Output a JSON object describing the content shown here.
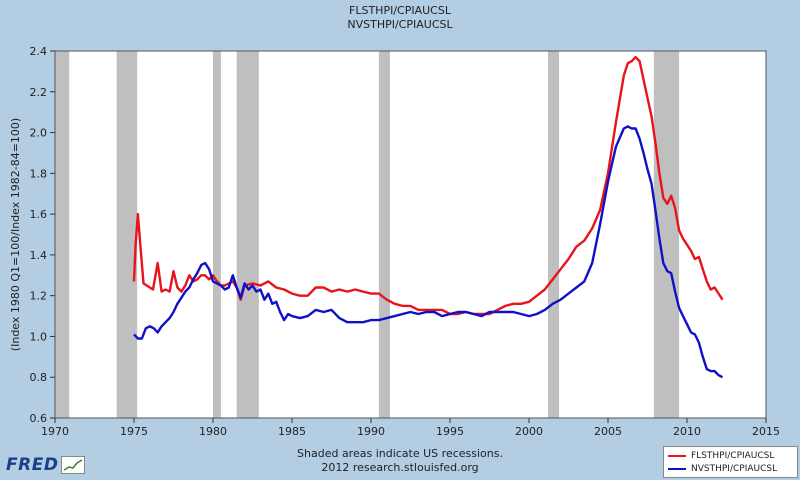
{
  "header": {
    "line1": "FLSTHPI/CPIAUCSL",
    "line2": "NVSTHPI/CPIAUCSL"
  },
  "footer": {
    "line1": "Shaded areas indicate US recessions.",
    "line2": "2012 research.stlouisfed.org"
  },
  "logo": {
    "text": "FRED"
  },
  "colors": {
    "fl": "#e8141c",
    "nv": "#1010c8",
    "recession": "#bfbfbf",
    "plot_bg": "#ffffff",
    "page_bg": "#b3cde3"
  },
  "chart_data": {
    "type": "line",
    "title": "FLSTHPI/CPIAUCSL\nNVSTHPI/CPIAUCSL",
    "xlabel": "",
    "ylabel": "(Index 1980 Q1=100/Index 1982-84=100)",
    "xlim": [
      1970,
      2015
    ],
    "ylim": [
      0.6,
      2.4
    ],
    "xticks": [
      "1970",
      "1975",
      "1980",
      "1985",
      "1990",
      "1995",
      "2000",
      "2005",
      "2010",
      "2015"
    ],
    "yticks": [
      "0.6",
      "0.8",
      "1.0",
      "1.2",
      "1.4",
      "1.6",
      "1.8",
      "2.0",
      "2.2",
      "2.4"
    ],
    "grid": false,
    "legend": "bottom-right",
    "recessions": [
      [
        1969.9,
        1970.9
      ],
      [
        1973.9,
        1975.2
      ],
      [
        1980.0,
        1980.5
      ],
      [
        1981.5,
        1982.9
      ],
      [
        1990.5,
        1991.2
      ],
      [
        2001.2,
        2001.9
      ],
      [
        2007.9,
        2009.5
      ]
    ],
    "series": [
      {
        "name": "FLSTHPI/CPIAUCSL",
        "points": [
          [
            1975.0,
            1.27
          ],
          [
            1975.1,
            1.45
          ],
          [
            1975.25,
            1.6
          ],
          [
            1975.4,
            1.45
          ],
          [
            1975.6,
            1.26
          ],
          [
            1976.0,
            1.24
          ],
          [
            1976.2,
            1.23
          ],
          [
            1976.5,
            1.36
          ],
          [
            1976.75,
            1.22
          ],
          [
            1977.0,
            1.23
          ],
          [
            1977.25,
            1.22
          ],
          [
            1977.5,
            1.32
          ],
          [
            1977.75,
            1.24
          ],
          [
            1978.0,
            1.22
          ],
          [
            1978.25,
            1.25
          ],
          [
            1978.5,
            1.3
          ],
          [
            1978.75,
            1.27
          ],
          [
            1979.0,
            1.28
          ],
          [
            1979.25,
            1.3
          ],
          [
            1979.5,
            1.3
          ],
          [
            1979.75,
            1.28
          ],
          [
            1980.0,
            1.3
          ],
          [
            1980.25,
            1.27
          ],
          [
            1980.5,
            1.25
          ],
          [
            1980.75,
            1.25
          ],
          [
            1981.0,
            1.26
          ],
          [
            1981.25,
            1.27
          ],
          [
            1981.5,
            1.24
          ],
          [
            1981.75,
            1.18
          ],
          [
            1982.0,
            1.25
          ],
          [
            1982.5,
            1.26
          ],
          [
            1983.0,
            1.25
          ],
          [
            1983.5,
            1.27
          ],
          [
            1984.0,
            1.24
          ],
          [
            1984.5,
            1.23
          ],
          [
            1985.0,
            1.21
          ],
          [
            1985.5,
            1.2
          ],
          [
            1986.0,
            1.2
          ],
          [
            1986.5,
            1.24
          ],
          [
            1987.0,
            1.24
          ],
          [
            1987.5,
            1.22
          ],
          [
            1988.0,
            1.23
          ],
          [
            1988.5,
            1.22
          ],
          [
            1989.0,
            1.23
          ],
          [
            1989.5,
            1.22
          ],
          [
            1990.0,
            1.21
          ],
          [
            1990.5,
            1.21
          ],
          [
            1991.0,
            1.18
          ],
          [
            1991.5,
            1.16
          ],
          [
            1992.0,
            1.15
          ],
          [
            1992.5,
            1.15
          ],
          [
            1993.0,
            1.13
          ],
          [
            1993.5,
            1.13
          ],
          [
            1994.0,
            1.13
          ],
          [
            1994.5,
            1.13
          ],
          [
            1995.0,
            1.11
          ],
          [
            1995.5,
            1.11
          ],
          [
            1996.0,
            1.12
          ],
          [
            1996.5,
            1.11
          ],
          [
            1997.0,
            1.11
          ],
          [
            1997.5,
            1.11
          ],
          [
            1998.0,
            1.13
          ],
          [
            1998.5,
            1.15
          ],
          [
            1999.0,
            1.16
          ],
          [
            1999.5,
            1.16
          ],
          [
            2000.0,
            1.17
          ],
          [
            2000.5,
            1.2
          ],
          [
            2001.0,
            1.23
          ],
          [
            2001.5,
            1.28
          ],
          [
            2002.0,
            1.33
          ],
          [
            2002.5,
            1.38
          ],
          [
            2003.0,
            1.44
          ],
          [
            2003.5,
            1.47
          ],
          [
            2004.0,
            1.53
          ],
          [
            2004.5,
            1.62
          ],
          [
            2005.0,
            1.8
          ],
          [
            2005.5,
            2.05
          ],
          [
            2006.0,
            2.28
          ],
          [
            2006.25,
            2.34
          ],
          [
            2006.5,
            2.35
          ],
          [
            2006.75,
            2.37
          ],
          [
            2007.0,
            2.35
          ],
          [
            2007.25,
            2.26
          ],
          [
            2007.5,
            2.17
          ],
          [
            2007.75,
            2.08
          ],
          [
            2008.0,
            1.95
          ],
          [
            2008.25,
            1.8
          ],
          [
            2008.5,
            1.68
          ],
          [
            2008.75,
            1.65
          ],
          [
            2009.0,
            1.69
          ],
          [
            2009.25,
            1.63
          ],
          [
            2009.5,
            1.52
          ],
          [
            2009.75,
            1.48
          ],
          [
            2010.0,
            1.45
          ],
          [
            2010.25,
            1.42
          ],
          [
            2010.5,
            1.38
          ],
          [
            2010.75,
            1.39
          ],
          [
            2011.0,
            1.33
          ],
          [
            2011.25,
            1.27
          ],
          [
            2011.5,
            1.23
          ],
          [
            2011.75,
            1.24
          ],
          [
            2012.0,
            1.21
          ],
          [
            2012.25,
            1.18
          ]
        ]
      },
      {
        "name": "NVSTHPI/CPIAUCSL",
        "points": [
          [
            1975.0,
            1.01
          ],
          [
            1975.25,
            0.99
          ],
          [
            1975.5,
            0.99
          ],
          [
            1975.75,
            1.04
          ],
          [
            1976.0,
            1.05
          ],
          [
            1976.25,
            1.04
          ],
          [
            1976.5,
            1.02
          ],
          [
            1976.75,
            1.05
          ],
          [
            1977.0,
            1.07
          ],
          [
            1977.25,
            1.09
          ],
          [
            1977.5,
            1.12
          ],
          [
            1977.75,
            1.16
          ],
          [
            1978.0,
            1.19
          ],
          [
            1978.25,
            1.22
          ],
          [
            1978.5,
            1.24
          ],
          [
            1978.75,
            1.28
          ],
          [
            1979.0,
            1.31
          ],
          [
            1979.25,
            1.35
          ],
          [
            1979.5,
            1.36
          ],
          [
            1979.75,
            1.33
          ],
          [
            1980.0,
            1.27
          ],
          [
            1980.25,
            1.26
          ],
          [
            1980.5,
            1.25
          ],
          [
            1980.75,
            1.23
          ],
          [
            1981.0,
            1.24
          ],
          [
            1981.25,
            1.3
          ],
          [
            1981.5,
            1.24
          ],
          [
            1981.75,
            1.19
          ],
          [
            1982.0,
            1.26
          ],
          [
            1982.25,
            1.23
          ],
          [
            1982.5,
            1.25
          ],
          [
            1982.75,
            1.22
          ],
          [
            1983.0,
            1.23
          ],
          [
            1983.25,
            1.18
          ],
          [
            1983.5,
            1.21
          ],
          [
            1983.75,
            1.16
          ],
          [
            1984.0,
            1.17
          ],
          [
            1984.25,
            1.12
          ],
          [
            1984.5,
            1.08
          ],
          [
            1984.75,
            1.11
          ],
          [
            1985.0,
            1.1
          ],
          [
            1985.5,
            1.09
          ],
          [
            1986.0,
            1.1
          ],
          [
            1986.5,
            1.13
          ],
          [
            1987.0,
            1.12
          ],
          [
            1987.5,
            1.13
          ],
          [
            1988.0,
            1.09
          ],
          [
            1988.5,
            1.07
          ],
          [
            1989.0,
            1.07
          ],
          [
            1989.5,
            1.07
          ],
          [
            1990.0,
            1.08
          ],
          [
            1990.5,
            1.08
          ],
          [
            1991.0,
            1.09
          ],
          [
            1991.5,
            1.1
          ],
          [
            1992.0,
            1.11
          ],
          [
            1992.5,
            1.12
          ],
          [
            1993.0,
            1.11
          ],
          [
            1993.5,
            1.12
          ],
          [
            1994.0,
            1.12
          ],
          [
            1994.5,
            1.1
          ],
          [
            1995.0,
            1.11
          ],
          [
            1995.5,
            1.12
          ],
          [
            1996.0,
            1.12
          ],
          [
            1996.5,
            1.11
          ],
          [
            1997.0,
            1.1
          ],
          [
            1997.5,
            1.12
          ],
          [
            1998.0,
            1.12
          ],
          [
            1998.5,
            1.12
          ],
          [
            1999.0,
            1.12
          ],
          [
            1999.5,
            1.11
          ],
          [
            2000.0,
            1.1
          ],
          [
            2000.5,
            1.11
          ],
          [
            2001.0,
            1.13
          ],
          [
            2001.5,
            1.16
          ],
          [
            2002.0,
            1.18
          ],
          [
            2002.5,
            1.21
          ],
          [
            2003.0,
            1.24
          ],
          [
            2003.5,
            1.27
          ],
          [
            2004.0,
            1.36
          ],
          [
            2004.5,
            1.55
          ],
          [
            2005.0,
            1.76
          ],
          [
            2005.5,
            1.93
          ],
          [
            2006.0,
            2.02
          ],
          [
            2006.25,
            2.03
          ],
          [
            2006.5,
            2.02
          ],
          [
            2006.75,
            2.02
          ],
          [
            2007.0,
            1.97
          ],
          [
            2007.25,
            1.9
          ],
          [
            2007.5,
            1.82
          ],
          [
            2007.75,
            1.75
          ],
          [
            2008.0,
            1.62
          ],
          [
            2008.25,
            1.48
          ],
          [
            2008.5,
            1.36
          ],
          [
            2008.75,
            1.32
          ],
          [
            2009.0,
            1.31
          ],
          [
            2009.25,
            1.22
          ],
          [
            2009.5,
            1.14
          ],
          [
            2009.75,
            1.1
          ],
          [
            2010.0,
            1.06
          ],
          [
            2010.25,
            1.02
          ],
          [
            2010.5,
            1.01
          ],
          [
            2010.75,
            0.97
          ],
          [
            2011.0,
            0.9
          ],
          [
            2011.25,
            0.84
          ],
          [
            2011.5,
            0.83
          ],
          [
            2011.75,
            0.83
          ],
          [
            2012.0,
            0.81
          ],
          [
            2012.25,
            0.8
          ]
        ]
      }
    ]
  }
}
